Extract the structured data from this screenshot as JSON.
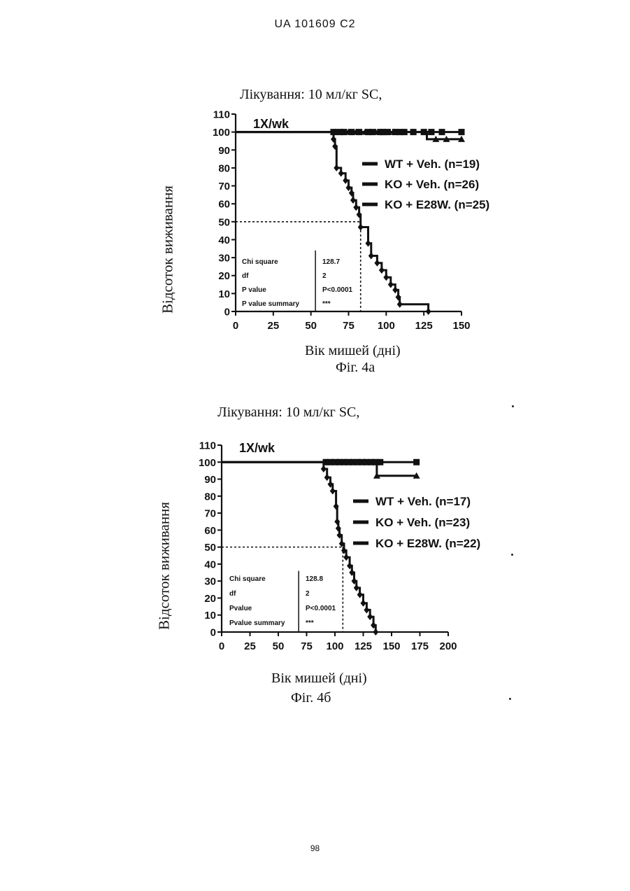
{
  "header": "UA   101609   C2",
  "page_number": "98",
  "colors": {
    "ink": "#111111",
    "paper": "#ffffff"
  },
  "chart_data": [
    {
      "type": "line",
      "subtype": "kaplan-meier",
      "treatment": "Лікування: 10 мл/кг SC,",
      "inner_label": "1X/wk",
      "ylabel": "Відсоток виживання",
      "xlabel": "Вік мишей (дні)",
      "caption": "Фіг. 4а",
      "xlim": [
        0,
        150
      ],
      "ylim": [
        0,
        110
      ],
      "xticks": [
        "0",
        "25",
        "50",
        "75",
        "100",
        "125",
        "150"
      ],
      "yticks": [
        "0",
        "10",
        "20",
        "30",
        "40",
        "50",
        "60",
        "70",
        "80",
        "90",
        "100",
        "110"
      ],
      "median_line": {
        "x": 83,
        "y": 50
      },
      "legend": [
        "WT + Veh. (n=19)",
        "KO + Veh. (n=26)",
        "KO + E28W. (n=25)"
      ],
      "stats": {
        "rows": [
          [
            "Chi square",
            "128.7"
          ],
          [
            "df",
            "2"
          ],
          [
            "P value",
            "P<0.0001"
          ],
          [
            "P value summary",
            "***"
          ]
        ],
        "x_from": 2,
        "x_to": 53,
        "y_from": 0,
        "y_to": 34,
        "divider_x": 53
      },
      "series": [
        {
          "name": "WT + Veh. (n=19)",
          "marker": "square",
          "x": [
            0,
            150
          ],
          "y": [
            100,
            100
          ],
          "censor_x": [
            65,
            69,
            72,
            77,
            82,
            88,
            91,
            96,
            98,
            101,
            106,
            109,
            112,
            118,
            125,
            130,
            137,
            150
          ]
        },
        {
          "name": "KO + E28W. (n=25)",
          "marker": "triangle",
          "x": [
            0,
            127,
            127,
            150
          ],
          "y": [
            100,
            100,
            96,
            96
          ],
          "censor_x": [
            66,
            71,
            75,
            80,
            86,
            93,
            99,
            105,
            112,
            118,
            126,
            133,
            140,
            150
          ]
        },
        {
          "name": "KO + Veh. (n=26)",
          "marker": "diamond",
          "x": [
            0,
            65,
            65,
            66,
            66,
            67,
            67,
            70,
            70,
            73,
            73,
            75,
            75,
            77,
            77,
            78,
            78,
            80,
            80,
            82,
            82,
            83,
            83,
            88,
            88,
            90,
            90,
            94,
            94,
            97,
            97,
            100,
            100,
            103,
            103,
            106,
            106,
            108,
            108,
            109,
            109,
            110,
            110,
            128,
            128
          ],
          "y": [
            100,
            100,
            96,
            96,
            92,
            92,
            80,
            80,
            77,
            77,
            73,
            73,
            69,
            69,
            66,
            66,
            62,
            62,
            58,
            58,
            54,
            54,
            47,
            47,
            38,
            38,
            31,
            31,
            27,
            27,
            23,
            23,
            19,
            19,
            15,
            15,
            12,
            12,
            8,
            8,
            4,
            4,
            4,
            4,
            0
          ]
        }
      ]
    },
    {
      "type": "line",
      "subtype": "kaplan-meier",
      "treatment": "Лікування: 10 мл/кг SC,",
      "inner_label": "1X/wk",
      "ylabel": "Відсоток виживання",
      "xlabel": "Вік мишей (дні)",
      "caption": "Фіг. 4б",
      "xlim": [
        0,
        200
      ],
      "ylim": [
        0,
        110
      ],
      "xticks": [
        "0",
        "25",
        "50",
        "75",
        "100",
        "125",
        "150",
        "175",
        "200"
      ],
      "yticks": [
        "0",
        "10",
        "20",
        "30",
        "40",
        "50",
        "60",
        "70",
        "80",
        "90",
        "100",
        "110"
      ],
      "median_line": {
        "x": 107,
        "y": 50
      },
      "legend": [
        "WT + Veh. (n=17)",
        "KO + Veh. (n=23)",
        "KO + E28W. (n=22)"
      ],
      "stats": {
        "rows": [
          [
            "Chi square",
            "128.8"
          ],
          [
            "df",
            "2"
          ],
          [
            "Pvalue",
            "P<0.0001"
          ],
          [
            "Pvalue summary",
            "***"
          ]
        ],
        "x_from": 2,
        "x_to": 68,
        "y_from": 0,
        "y_to": 36,
        "divider_x": 68
      },
      "series": [
        {
          "name": "WT + Veh. (n=17)",
          "marker": "square",
          "x": [
            0,
            172
          ],
          "y": [
            100,
            100
          ],
          "censor_x": [
            92,
            96,
            100,
            104,
            108,
            112,
            116,
            120,
            124,
            128,
            132,
            136,
            140,
            172
          ]
        },
        {
          "name": "KO + E28W. (n=22)",
          "marker": "triangle",
          "x": [
            0,
            137,
            137,
            172
          ],
          "y": [
            100,
            100,
            92,
            92
          ],
          "censor_x": [
            93,
            98,
            103,
            109,
            115,
            121,
            126,
            133,
            137,
            172
          ]
        },
        {
          "name": "KO + Veh. (n=23)",
          "marker": "diamond",
          "x": [
            0,
            90,
            90,
            93,
            93,
            96,
            96,
            98,
            98,
            101,
            101,
            102,
            102,
            103,
            103,
            104,
            104,
            106,
            106,
            108,
            108,
            110,
            110,
            113,
            113,
            115,
            115,
            117,
            117,
            119,
            119,
            122,
            122,
            125,
            125,
            128,
            128,
            131,
            131,
            134,
            134,
            136,
            136
          ],
          "y": [
            100,
            100,
            96,
            96,
            91,
            91,
            87,
            87,
            83,
            83,
            74,
            74,
            65,
            65,
            61,
            61,
            57,
            57,
            52,
            52,
            48,
            48,
            44,
            44,
            39,
            39,
            35,
            35,
            30,
            30,
            26,
            26,
            22,
            22,
            17,
            17,
            13,
            13,
            9,
            9,
            4,
            4,
            0
          ]
        }
      ]
    }
  ]
}
